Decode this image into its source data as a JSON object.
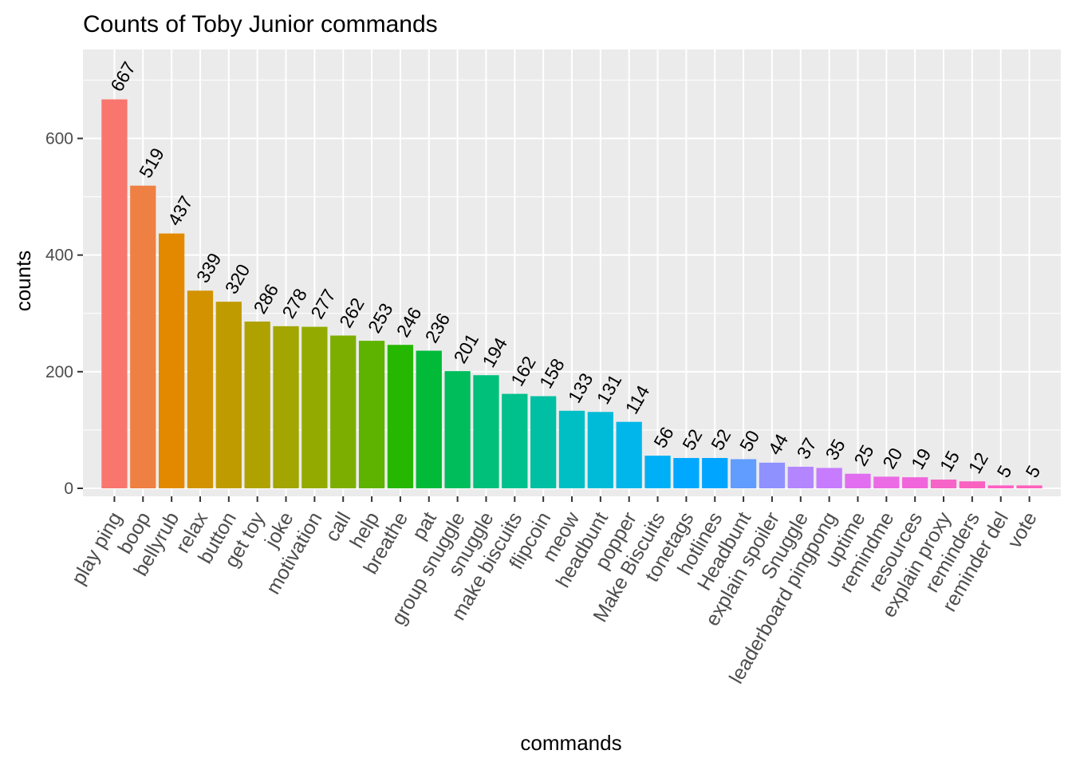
{
  "chart_data": {
    "type": "bar",
    "title": "Counts of Toby Junior commands",
    "xlabel": "commands",
    "ylabel": "counts",
    "ylim": [
      0,
      700
    ],
    "yticks": [
      0,
      200,
      400,
      600
    ],
    "grid": true,
    "legend": "none",
    "categories": [
      "play ping",
      "boop",
      "bellyrub",
      "relax",
      "button",
      "get toy",
      "joke",
      "motivation",
      "call",
      "help",
      "breathe",
      "pat",
      "group snuggle",
      "snuggle",
      "make biscuits",
      "flipcoin",
      "meow",
      "headbunt",
      "popper",
      "Make Biscuits",
      "tonetags",
      "hotlines",
      "Headbunt",
      "explain spoiler",
      "Snuggle",
      "leaderboard pingpong",
      "uptime",
      "remindme",
      "resources",
      "explain proxy",
      "reminders",
      "reminder del",
      "vote"
    ],
    "values": [
      667,
      519,
      437,
      339,
      320,
      286,
      278,
      277,
      262,
      253,
      246,
      236,
      201,
      194,
      162,
      158,
      133,
      131,
      114,
      56,
      52,
      52,
      50,
      44,
      37,
      35,
      25,
      20,
      19,
      15,
      12,
      5,
      5
    ],
    "colors": [
      "#F8766D",
      "#EE8043",
      "#E38900",
      "#D39200",
      "#C09B00",
      "#AFA200",
      "#A3A500",
      "#93AA00",
      "#7CAE00",
      "#5EB300",
      "#26B800",
      "#00BA38",
      "#00BD5C",
      "#00C07A",
      "#00C08B",
      "#00BFA2",
      "#00BFC4",
      "#00BBD8",
      "#00B6EB",
      "#00B0F6",
      "#00A9FF",
      "#00A5FF",
      "#619CFF",
      "#8F91FF",
      "#B385FF",
      "#C77CFF",
      "#E16EF0",
      "#EB6BE5",
      "#F066DA",
      "#F564C6",
      "#FA62C0",
      "#FF61C3",
      "#FF62BC"
    ],
    "panel_background": "#EBEBEB",
    "grid_color": "#FFFFFF"
  }
}
